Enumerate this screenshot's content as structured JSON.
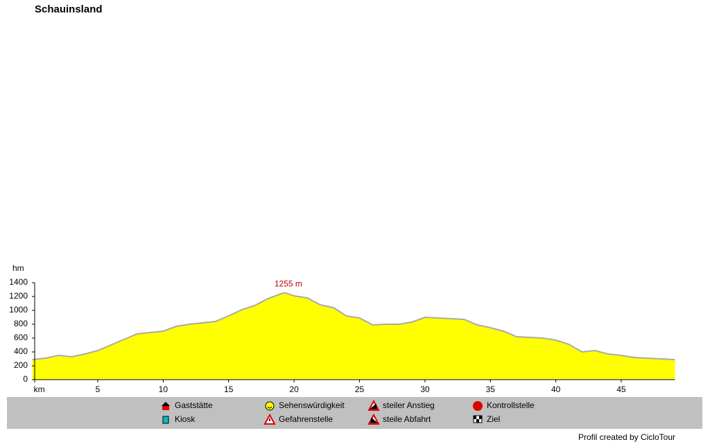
{
  "chart_data": {
    "type": "area",
    "title": "Schauinsland",
    "ylabel": "hm",
    "x": [
      0,
      1,
      2,
      3,
      4,
      5,
      6,
      7,
      8,
      9,
      10,
      11,
      12,
      13,
      14,
      15,
      16,
      17,
      18,
      19,
      19.3,
      20,
      21,
      22,
      23,
      24,
      25,
      26,
      27,
      28,
      29,
      30,
      31,
      32,
      33,
      34,
      35,
      36,
      37,
      38,
      39,
      40,
      41,
      42,
      43,
      44,
      45,
      46,
      47,
      48,
      49,
      49.1
    ],
    "values": [
      290,
      310,
      350,
      330,
      370,
      420,
      500,
      580,
      660,
      680,
      700,
      770,
      800,
      820,
      840,
      920,
      1010,
      1070,
      1170,
      1240,
      1255,
      1210,
      1180,
      1080,
      1040,
      920,
      890,
      790,
      800,
      800,
      830,
      900,
      890,
      880,
      870,
      790,
      750,
      700,
      620,
      610,
      600,
      570,
      510,
      400,
      420,
      370,
      350,
      320,
      310,
      300,
      290,
      290
    ],
    "color": "#ffff00",
    "line_color": "#aaaaaa",
    "xlim": [
      0,
      49.1
    ],
    "xticks": [
      {
        "value": 0,
        "label": "km"
      },
      5,
      10,
      15,
      20,
      25,
      30,
      35,
      40,
      45
    ],
    "ylim": [
      0,
      1400
    ],
    "yticks": [
      0,
      200,
      400,
      600,
      800,
      1000,
      1200,
      1400
    ],
    "annotation": "1255 m",
    "legend": [
      "Gaststätte",
      "Sehenswürdigkeit",
      "steiler Anstieg",
      "Kontrollstelle",
      "Kiosk",
      "Gefahrenstelle",
      "steile Abfahrt",
      "Ziel"
    ],
    "footer": "Profil created by CicloTour"
  }
}
